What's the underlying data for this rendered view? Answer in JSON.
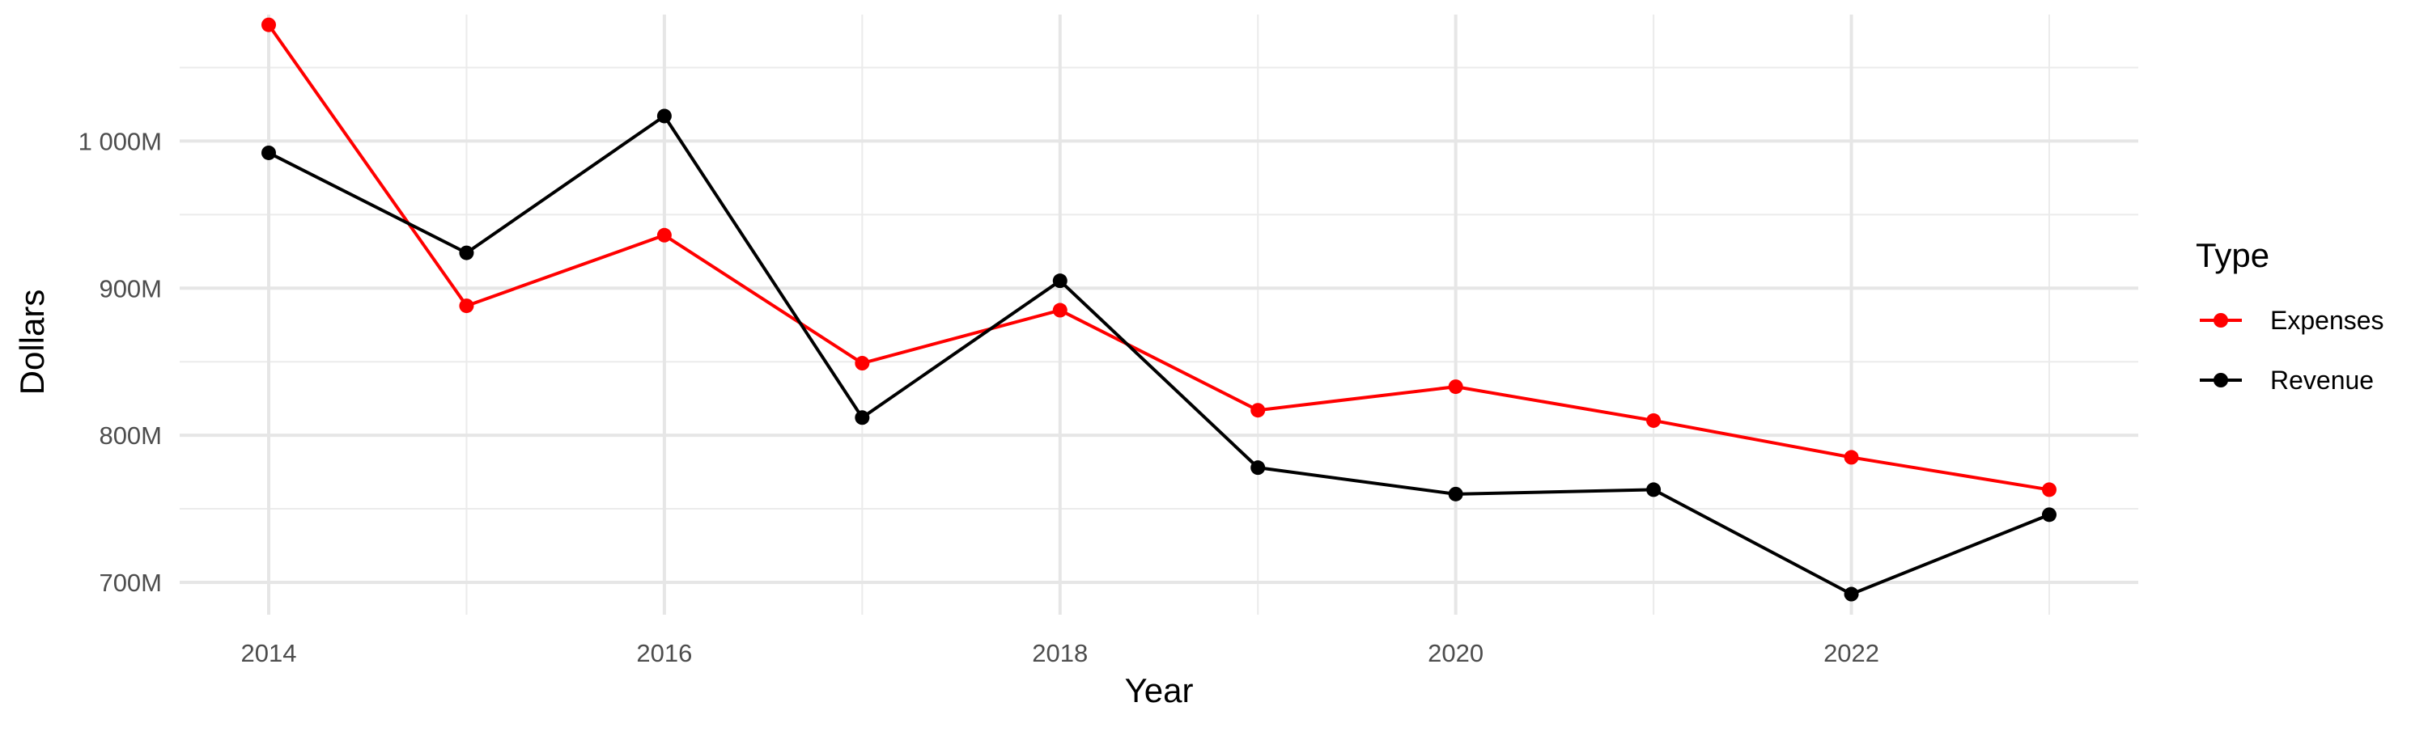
{
  "chart_data": {
    "type": "line",
    "title": "",
    "xlabel": "Year",
    "ylabel": "Dollars",
    "x": [
      2014,
      2015,
      2016,
      2017,
      2018,
      2019,
      2020,
      2021,
      2022,
      2023
    ],
    "xticks": [
      2014,
      2016,
      2018,
      2020,
      2022
    ],
    "xtick_labels": [
      "2014",
      "2016",
      "2018",
      "2020",
      "2022"
    ],
    "xlim": [
      2013.55,
      2023.45
    ],
    "yticks": [
      700,
      800,
      900,
      1000
    ],
    "ytick_labels": [
      "700M",
      "800M",
      "900M",
      "1 000M"
    ],
    "ylim": [
      678,
      1086
    ],
    "grid": true,
    "legend": {
      "title": "Type",
      "position": "right"
    },
    "series": [
      {
        "name": "Expenses",
        "color": "#ff0000",
        "values": [
          1079,
          888,
          936,
          849,
          885,
          817,
          833,
          810,
          785,
          763
        ]
      },
      {
        "name": "Revenue",
        "color": "#000000",
        "values": [
          992,
          924,
          1017,
          812,
          905,
          778,
          760,
          763,
          692,
          746
        ]
      }
    ]
  }
}
